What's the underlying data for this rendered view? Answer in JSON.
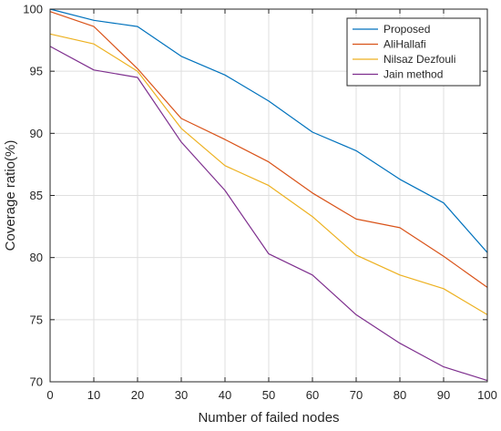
{
  "chart_data": {
    "type": "line",
    "title": "",
    "xlabel": "Number of failed nodes",
    "ylabel": "Coverage ratio(%)",
    "x": [
      0,
      10,
      20,
      30,
      40,
      50,
      60,
      70,
      80,
      90,
      100
    ],
    "xlim": [
      0,
      100
    ],
    "ylim": [
      70,
      100
    ],
    "xticks": [
      0,
      10,
      20,
      30,
      40,
      50,
      60,
      70,
      80,
      90,
      100
    ],
    "yticks": [
      70,
      75,
      80,
      85,
      90,
      95,
      100
    ],
    "grid": true,
    "legend_position": "top-right",
    "series": [
      {
        "name": "Proposed",
        "color": "#0072BD",
        "values": [
          100,
          99.1,
          98.6,
          96.2,
          94.7,
          92.6,
          90.1,
          88.6,
          86.3,
          84.4,
          80.4
        ]
      },
      {
        "name": "AliHallafi",
        "color": "#D95319",
        "values": [
          99.8,
          98.6,
          95.2,
          91.2,
          89.5,
          87.7,
          85.2,
          83.1,
          82.4,
          80.1,
          77.6
        ]
      },
      {
        "name": "Nilsaz Dezfouli",
        "color": "#EDB120",
        "values": [
          98.0,
          97.2,
          95.0,
          90.4,
          87.4,
          85.8,
          83.3,
          80.2,
          78.6,
          77.5,
          75.4
        ]
      },
      {
        "name": "Jain method",
        "color": "#7E2F8E",
        "values": [
          97.0,
          95.1,
          94.5,
          89.3,
          85.4,
          80.3,
          78.6,
          75.4,
          73.1,
          71.2,
          70.1
        ]
      }
    ]
  }
}
